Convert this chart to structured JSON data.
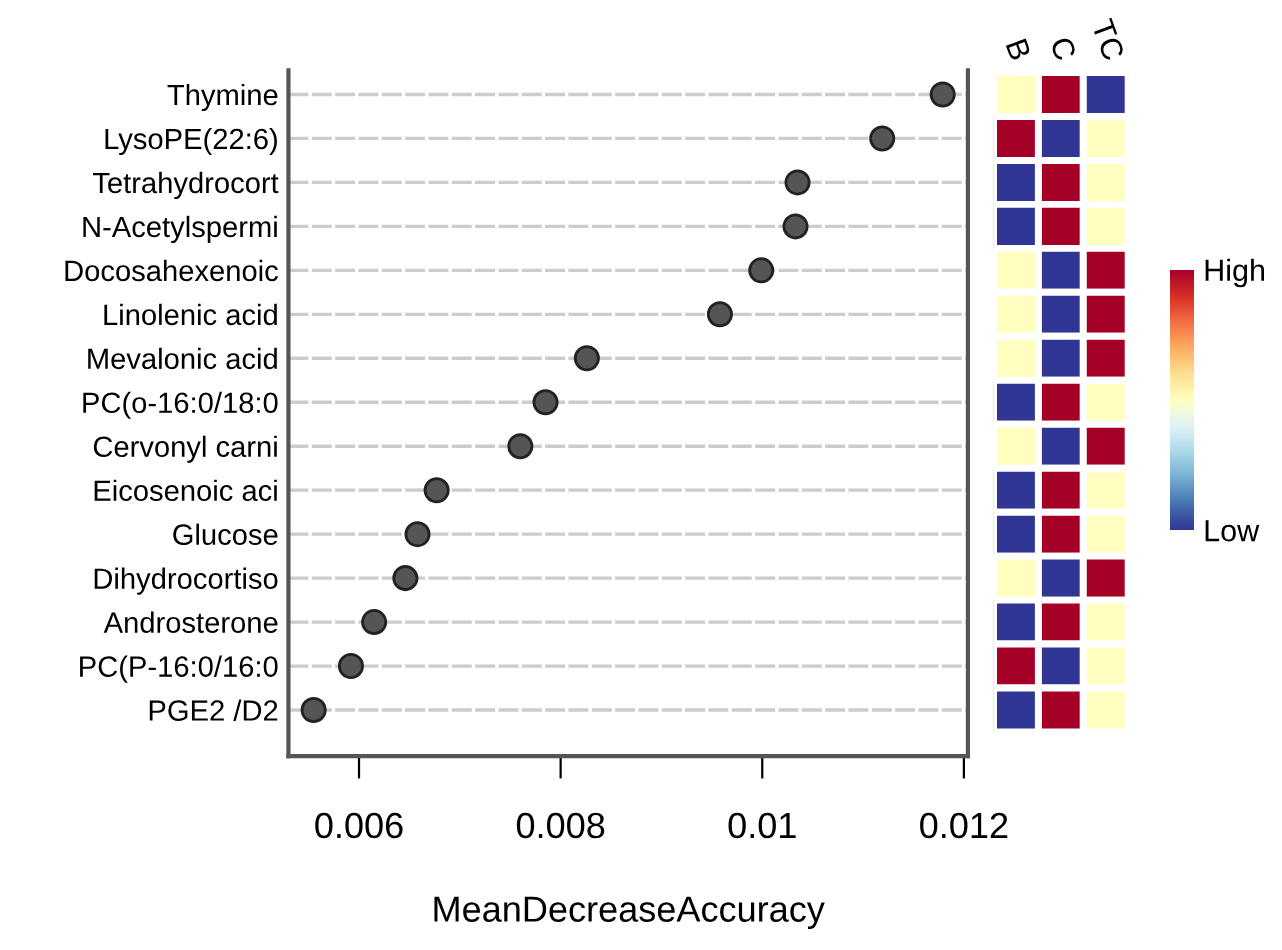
{
  "chart_data": [
    {
      "type": "scatter",
      "orientation": "horizontal",
      "xlabel": "MeanDecreaseAccuracy",
      "categories": [
        "Thymine",
        "LysoPE(22:6)",
        "Tetrahydrocort",
        "N-Acetylspermi",
        "Docosahexenoic",
        "Linolenic acid",
        "Mevalonic acid",
        "PC(o-16:0/18:0",
        "Cervonyl carni",
        "Eicosenoic aci",
        "Glucose",
        "Dihydrocortiso",
        "Androsterone",
        "PC(P-16:0/16:0",
        "PGE2 /D2"
      ],
      "values": [
        0.01179,
        0.01119,
        0.01035,
        0.01033,
        0.00999,
        0.00958,
        0.00826,
        0.00785,
        0.0076,
        0.00677,
        0.00658,
        0.00646,
        0.00615,
        0.00592,
        0.00555
      ],
      "color": "#555555",
      "marker": "circle",
      "grid": "y",
      "xlim": [
        0.0053,
        0.01204
      ],
      "xticks": [
        0.006,
        0.008,
        0.01,
        0.012
      ]
    },
    {
      "type": "heatmap",
      "categories": [
        "B",
        "C",
        "TC"
      ],
      "y_categories": [
        null,
        null,
        null,
        null,
        null,
        null,
        null,
        null,
        null,
        null,
        null,
        null,
        null,
        null,
        null
      ],
      "cells": [
        [
          0,
          1,
          -1
        ],
        [
          1,
          -1,
          0
        ],
        [
          -1,
          1,
          0
        ],
        [
          -1,
          1,
          0
        ],
        [
          0,
          -1,
          1
        ],
        [
          0,
          -1,
          1
        ],
        [
          0,
          -1,
          1
        ],
        [
          -1,
          1,
          0
        ],
        [
          0,
          -1,
          1
        ],
        [
          -1,
          1,
          0
        ],
        [
          -1,
          1,
          0
        ],
        [
          0,
          -1,
          1
        ],
        [
          -1,
          1,
          0
        ],
        [
          1,
          -1,
          0
        ],
        [
          -1,
          1,
          0
        ]
      ],
      "clim": [
        -1,
        1
      ],
      "cticks": [
        {
          "value": 1,
          "label": "High"
        },
        {
          "value": -1,
          "label": "Low"
        }
      ],
      "tick_labels": "x"
    }
  ]
}
